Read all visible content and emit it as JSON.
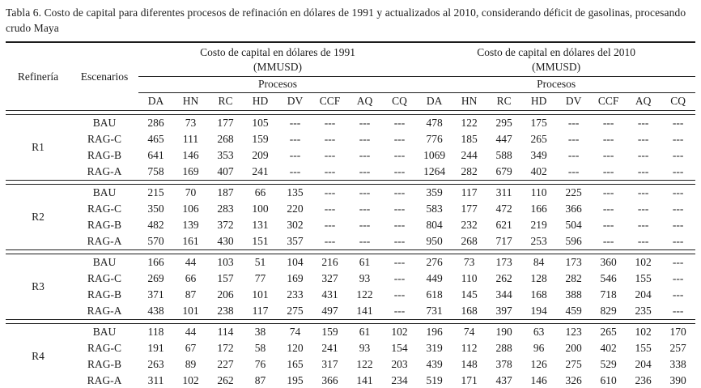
{
  "caption": "Tabla 6. Costo de capital para diferentes procesos de refinación en dólares de 1991 y actualizados al 2010, considerando déficit de gasolinas, procesando crudo Maya",
  "table": {
    "col_refineria": "Refinería",
    "col_escenarios": "Escenarios",
    "groups": [
      {
        "title": "Costo de capital en dólares de 1991",
        "unit": "(MMUSD)",
        "subheader": "Procesos"
      },
      {
        "title": "Costo de capital en dólares del 2010",
        "unit": "(MMUSD)",
        "subheader": "Procesos"
      }
    ],
    "process_columns": [
      "DA",
      "HN",
      "RC",
      "HD",
      "DV",
      "CCF",
      "AQ",
      "CQ"
    ],
    "empty_marker": "---",
    "blocks": [
      {
        "refinery": "R1",
        "rows": [
          {
            "scenario": "BAU",
            "v1991": [
              286,
              73,
              177,
              105,
              "---",
              "---",
              "---",
              "---"
            ],
            "v2010": [
              478,
              122,
              295,
              175,
              "---",
              "---",
              "---",
              "---"
            ]
          },
          {
            "scenario": "RAG-C",
            "v1991": [
              465,
              111,
              268,
              159,
              "---",
              "---",
              "---",
              "---"
            ],
            "v2010": [
              776,
              185,
              447,
              265,
              "---",
              "---",
              "---",
              "---"
            ]
          },
          {
            "scenario": "RAG-B",
            "v1991": [
              641,
              146,
              353,
              209,
              "---",
              "---",
              "---",
              "---"
            ],
            "v2010": [
              1069,
              244,
              588,
              349,
              "---",
              "---",
              "---",
              "---"
            ]
          },
          {
            "scenario": "RAG-A",
            "v1991": [
              758,
              169,
              407,
              241,
              "---",
              "---",
              "---",
              "---"
            ],
            "v2010": [
              1264,
              282,
              679,
              402,
              "---",
              "---",
              "---",
              "---"
            ]
          }
        ]
      },
      {
        "refinery": "R2",
        "rows": [
          {
            "scenario": "BAU",
            "v1991": [
              215,
              70,
              187,
              66,
              135,
              "---",
              "---",
              "---"
            ],
            "v2010": [
              359,
              117,
              311,
              110,
              225,
              "---",
              "---",
              "---"
            ]
          },
          {
            "scenario": "RAG-C",
            "v1991": [
              350,
              106,
              283,
              100,
              220,
              "---",
              "---",
              "---"
            ],
            "v2010": [
              583,
              177,
              472,
              166,
              366,
              "---",
              "---",
              "---"
            ]
          },
          {
            "scenario": "RAG-B",
            "v1991": [
              482,
              139,
              372,
              131,
              302,
              "---",
              "---",
              "---"
            ],
            "v2010": [
              804,
              232,
              621,
              219,
              504,
              "---",
              "---",
              "---"
            ]
          },
          {
            "scenario": "RAG-A",
            "v1991": [
              570,
              161,
              430,
              151,
              357,
              "---",
              "---",
              "---"
            ],
            "v2010": [
              950,
              268,
              717,
              253,
              596,
              "---",
              "---",
              "---"
            ]
          }
        ]
      },
      {
        "refinery": "R3",
        "rows": [
          {
            "scenario": "BAU",
            "v1991": [
              166,
              44,
              103,
              51,
              104,
              216,
              61,
              "---"
            ],
            "v2010": [
              276,
              73,
              173,
              84,
              173,
              360,
              102,
              "---"
            ]
          },
          {
            "scenario": "RAG-C",
            "v1991": [
              269,
              66,
              157,
              77,
              169,
              327,
              93,
              "---"
            ],
            "v2010": [
              449,
              110,
              262,
              128,
              282,
              546,
              155,
              "---"
            ]
          },
          {
            "scenario": "RAG-B",
            "v1991": [
              371,
              87,
              206,
              101,
              233,
              431,
              122,
              "---"
            ],
            "v2010": [
              618,
              145,
              344,
              168,
              388,
              718,
              204,
              "---"
            ]
          },
          {
            "scenario": "RAG-A",
            "v1991": [
              438,
              101,
              238,
              117,
              275,
              497,
              141,
              "---"
            ],
            "v2010": [
              731,
              168,
              397,
              194,
              459,
              829,
              235,
              "---"
            ]
          }
        ]
      },
      {
        "refinery": "R4",
        "rows": [
          {
            "scenario": "BAU",
            "v1991": [
              118,
              44,
              114,
              38,
              74,
              159,
              61,
              102
            ],
            "v2010": [
              196,
              74,
              190,
              63,
              123,
              265,
              102,
              170
            ]
          },
          {
            "scenario": "RAG-C",
            "v1991": [
              191,
              67,
              172,
              58,
              120,
              241,
              93,
              154
            ],
            "v2010": [
              319,
              112,
              288,
              96,
              200,
              402,
              155,
              257
            ]
          },
          {
            "scenario": "RAG-B",
            "v1991": [
              263,
              89,
              227,
              76,
              165,
              317,
              122,
              203
            ],
            "v2010": [
              439,
              148,
              378,
              126,
              275,
              529,
              204,
              338
            ]
          },
          {
            "scenario": "RAG-A",
            "v1991": [
              311,
              102,
              262,
              87,
              195,
              366,
              141,
              234
            ],
            "v2010": [
              519,
              171,
              437,
              146,
              326,
              610,
              236,
              390
            ]
          }
        ]
      }
    ]
  }
}
